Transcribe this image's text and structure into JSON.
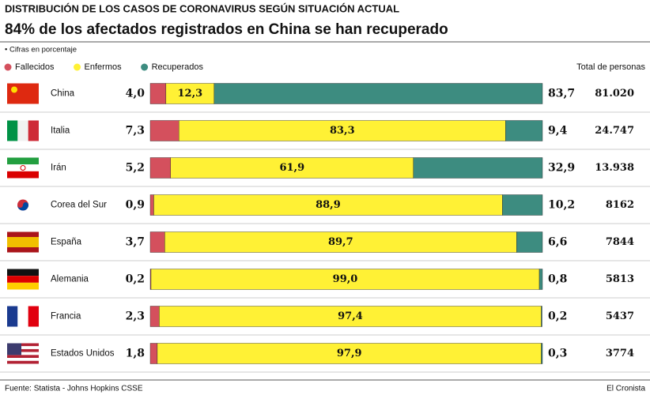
{
  "chart_data": {
    "type": "bar",
    "stacked": true,
    "orientation": "horizontal",
    "title": "DISTRIBUCIÓN DE LOS CASOS DE CORONAVIRUS SEGÚN SITUACIÓN ACTUAL",
    "subtitle": "84% de los afectados registrados en China se han recuperado",
    "note": "• Cifras en porcentaje",
    "categories": [
      "China",
      "Italia",
      "Irán",
      "Corea del Sur",
      "España",
      "Alemania",
      "Francia",
      "Estados Unidos"
    ],
    "xlim": [
      0,
      100
    ],
    "series": [
      {
        "name": "Fallecidos",
        "color": "#d4505d",
        "label_color": "#9b2c3d",
        "values": [
          4.0,
          7.3,
          5.2,
          0.9,
          3.7,
          0.2,
          2.3,
          1.8
        ],
        "value_labels": [
          "4,0",
          "7,3",
          "5,2",
          "0,9",
          "3,7",
          "0,2",
          "2,3",
          "1,8"
        ]
      },
      {
        "name": "Enfermos",
        "color": "#fff135",
        "label_color": "#111111",
        "values": [
          12.3,
          83.3,
          61.9,
          88.9,
          89.7,
          99.0,
          97.4,
          97.9
        ],
        "value_labels": [
          "12,3",
          "83,3",
          "61,9",
          "88,9",
          "89,7",
          "99,0",
          "97,4",
          "97,9"
        ]
      },
      {
        "name": "Recuperados",
        "color": "#3d8c80",
        "label_color": "#2f6f66",
        "values": [
          83.7,
          9.4,
          32.9,
          10.2,
          6.6,
          0.8,
          0.2,
          0.3
        ],
        "value_labels": [
          "83,7",
          "9,4",
          "32,9",
          "10,2",
          "6,6",
          "0,8",
          "0,2",
          "0,3"
        ]
      }
    ],
    "totals": {
      "label": "Total de personas",
      "values": [
        81020,
        24747,
        13938,
        8162,
        7844,
        5813,
        5437,
        3774
      ],
      "value_labels": [
        "81.020",
        "24.747",
        "13.938",
        "8162",
        "7844",
        "5813",
        "5437",
        "3774"
      ]
    },
    "source": "Fuente: Statista - Johns Hopkins CSSE",
    "brand": "El Cronista"
  }
}
